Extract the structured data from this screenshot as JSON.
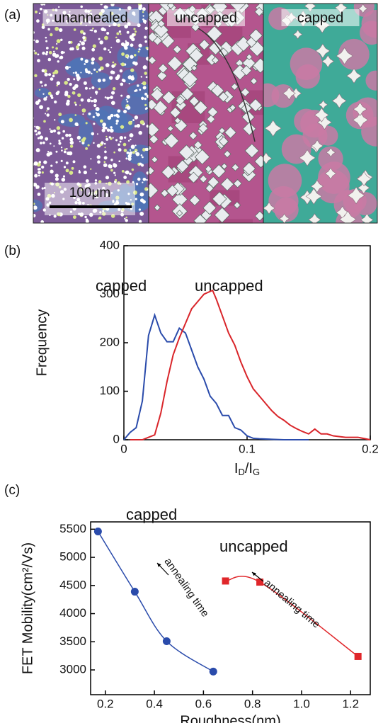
{
  "panel_a": {
    "panel_label": "(a)",
    "images": [
      "unannealed",
      "uncapped",
      "capped"
    ],
    "scale_bar": "100μm"
  },
  "chart_data": [
    {
      "type": "line",
      "panel_label": "(b)",
      "xlabel": [
        "I",
        "D",
        "/I",
        "G"
      ],
      "ylabel": "Frequency",
      "xlim": [
        0,
        0.2
      ],
      "xticks": [
        0,
        0.1,
        0.2
      ],
      "ylim": [
        0,
        400
      ],
      "yticks": [
        0,
        100,
        200,
        300,
        400
      ],
      "series": [
        {
          "name": "capped",
          "color": "#2a4bab",
          "x": [
            0,
            0.005,
            0.01,
            0.015,
            0.02,
            0.025,
            0.03,
            0.035,
            0.04,
            0.045,
            0.05,
            0.055,
            0.06,
            0.065,
            0.07,
            0.075,
            0.08,
            0.085,
            0.09,
            0.095,
            0.1,
            0.105,
            0.11,
            0.12,
            0.13,
            0.15
          ],
          "values": [
            0,
            15,
            25,
            80,
            215,
            257,
            220,
            202,
            202,
            230,
            220,
            185,
            150,
            125,
            90,
            75,
            50,
            50,
            25,
            20,
            8,
            3,
            2,
            1,
            0,
            0
          ]
        },
        {
          "name": "uncapped",
          "color": "#d9252a",
          "x": [
            0.005,
            0.015,
            0.02,
            0.025,
            0.03,
            0.035,
            0.04,
            0.045,
            0.05,
            0.055,
            0.06,
            0.065,
            0.072,
            0.075,
            0.08,
            0.085,
            0.09,
            0.095,
            0.1,
            0.105,
            0.11,
            0.115,
            0.12,
            0.125,
            0.13,
            0.135,
            0.14,
            0.145,
            0.15,
            0.155,
            0.16,
            0.165,
            0.17,
            0.18,
            0.19,
            0.2
          ],
          "values": [
            0,
            0,
            5,
            10,
            55,
            120,
            175,
            210,
            240,
            270,
            285,
            300,
            308,
            290,
            255,
            220,
            195,
            160,
            130,
            105,
            90,
            75,
            60,
            48,
            40,
            30,
            23,
            17,
            12,
            22,
            12,
            12,
            8,
            5,
            5,
            0
          ]
        }
      ]
    },
    {
      "type": "scatter-fit",
      "panel_label": "(c)",
      "xlabel": "Roughness(nm)",
      "ylabel": "FET Mobility(cm²/Vs)",
      "xlim": [
        0.14,
        1.28
      ],
      "xticks": [
        0.2,
        0.4,
        0.6,
        0.8,
        {
          "value": 1,
          "label": "1.0"
        },
        1.2
      ],
      "ylim": [
        2560,
        5630
      ],
      "yticks": [
        3000,
        3500,
        4000,
        4500,
        5000,
        5500
      ],
      "annotations": [
        "annealing time",
        "annealing time"
      ],
      "series": [
        {
          "name": "capped",
          "color": "#2a4bab",
          "marker": "circle",
          "x": [
            0.17,
            0.32,
            0.45,
            0.64
          ],
          "values": [
            5460,
            4390,
            3510,
            2970
          ]
        },
        {
          "name": "uncapped",
          "color": "#e0262a",
          "marker": "square",
          "x": [
            0.69,
            0.83,
            1.23
          ],
          "values": [
            4580,
            4560,
            3240
          ]
        }
      ]
    }
  ]
}
